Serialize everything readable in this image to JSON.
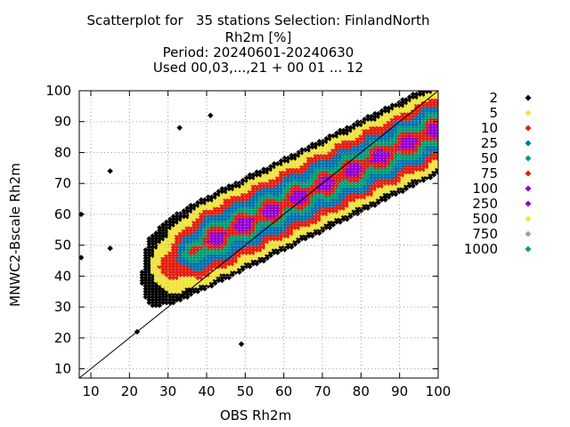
{
  "chart_data": {
    "type": "scatter",
    "title_lines": [
      "Scatterplot for   35 stations Selection: FinlandNorth",
      "Rh2m [%]",
      "Period: 20240601-20240630",
      "Used 00,03,...,21 + 00 01 ... 12"
    ],
    "xlabel": "OBS Rh2m",
    "ylabel": "MNWC2-Bscale Rh2m",
    "xlim": [
      7,
      100
    ],
    "ylim": [
      7,
      100
    ],
    "x_ticks": [
      "10",
      "20",
      "30",
      "40",
      "50",
      "60",
      "70",
      "80",
      "90",
      "100"
    ],
    "y_ticks": [
      "10",
      "20",
      "30",
      "40",
      "50",
      "60",
      "70",
      "80",
      "90",
      "100"
    ],
    "grid": true,
    "diagonal_line": true,
    "legend_placement": "right",
    "density_levels": [
      {
        "name": "2",
        "color": "#000000"
      },
      {
        "name": "5",
        "color": "#f0e442"
      },
      {
        "name": "10",
        "color": "#e51e10"
      },
      {
        "name": "25",
        "color": "#0072b2"
      },
      {
        "name": "50",
        "color": "#009e73"
      },
      {
        "name": "75",
        "color": "#e51e10"
      },
      {
        "name": "100",
        "color": "#9400d3"
      },
      {
        "name": "250",
        "color": "#9400d3"
      },
      {
        "name": "500",
        "color": "#f0e442"
      },
      {
        "name": "750",
        "color": "#a0a0a0"
      },
      {
        "name": "1000",
        "color": "#009e73"
      }
    ],
    "outlier_points": [
      {
        "x": 7.5,
        "y": 60
      },
      {
        "x": 7.5,
        "y": 46
      },
      {
        "x": 15,
        "y": 74
      },
      {
        "x": 15,
        "y": 49
      },
      {
        "x": 49,
        "y": 18
      },
      {
        "x": 22,
        "y": 22
      },
      {
        "x": 33,
        "y": 88
      },
      {
        "x": 41,
        "y": 92
      }
    ]
  }
}
